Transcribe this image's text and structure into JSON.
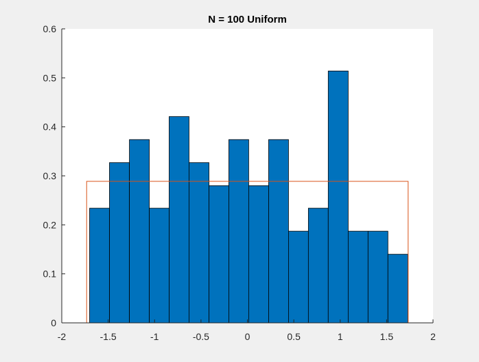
{
  "chart_data": {
    "type": "bar",
    "title": "N = 100 Uniform",
    "xlabel": "",
    "ylabel": "",
    "xlim": [
      -2,
      2
    ],
    "ylim": [
      0,
      0.6
    ],
    "xticks": [
      -2,
      -1.5,
      -1,
      -0.5,
      0,
      0.5,
      1,
      1.5,
      2
    ],
    "xtick_labels": [
      "-2",
      "-1.5",
      "-1",
      "-0.5",
      "0",
      "0.5",
      "1",
      "1.5",
      "2"
    ],
    "yticks": [
      0,
      0.1,
      0.2,
      0.3,
      0.4,
      0.5,
      0.6
    ],
    "ytick_labels": [
      "0",
      "0.1",
      "0.2",
      "0.3",
      "0.4",
      "0.5",
      "0.6"
    ],
    "grid": false,
    "legend": "none",
    "histogram": {
      "bin_edges": [
        -1.7,
        -1.486,
        -1.271,
        -1.057,
        -0.843,
        -0.629,
        -0.414,
        -0.2,
        0.014,
        0.229,
        0.443,
        0.657,
        0.871,
        1.086,
        1.3,
        1.514,
        1.729
      ],
      "values": [
        0.234,
        0.327,
        0.374,
        0.234,
        0.421,
        0.327,
        0.28,
        0.374,
        0.28,
        0.374,
        0.187,
        0.234,
        0.514,
        0.187,
        0.187,
        0.14
      ],
      "color": "#0072bd",
      "edge_color": "#000000"
    },
    "overlay": {
      "type": "line",
      "description_color": "#d95319",
      "x": [
        -2,
        -1.732,
        -1.732,
        1.732,
        1.732,
        2
      ],
      "y": [
        0,
        0,
        0.2887,
        0.2887,
        0,
        0
      ],
      "color": "#d95319"
    }
  }
}
